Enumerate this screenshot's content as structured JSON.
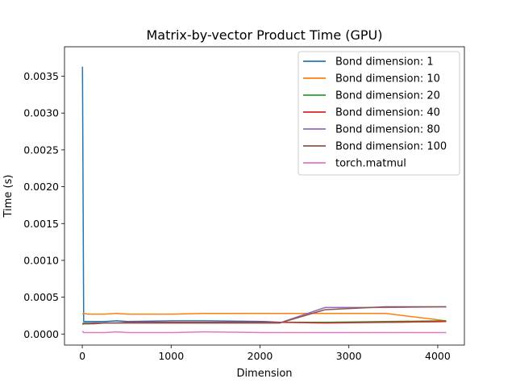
{
  "chart_data": {
    "type": "line",
    "title": "Matrix-by-vector Product Time (GPU)",
    "xlabel": "Dimension",
    "ylabel": "Time (s)",
    "xlim": [
      -200,
      4300
    ],
    "ylim": [
      -0.00015,
      0.0039
    ],
    "xticks": [
      0,
      1000,
      2000,
      3000,
      4000
    ],
    "xtick_labels": [
      "0",
      "1000",
      "2000",
      "3000",
      "4000"
    ],
    "yticks": [
      0.0,
      0.0005,
      0.001,
      0.0015,
      0.002,
      0.0025,
      0.003,
      0.0035
    ],
    "ytick_labels": [
      "0.0000",
      "0.0005",
      "0.0010",
      "0.0015",
      "0.0020",
      "0.0025",
      "0.0030",
      "0.0035"
    ],
    "grid": false,
    "legend_position": "top-right",
    "x": [
      2,
      16,
      64,
      128,
      256,
      384,
      512,
      1024,
      1365,
      2048,
      2221,
      2731,
      3413,
      4096
    ],
    "series": [
      {
        "name": "Bond dimension: 1",
        "color": "#1f77b4",
        "values": [
          0.00363,
          0.00017,
          0.00017,
          0.00017,
          0.00017,
          0.00018,
          0.00017,
          0.00018,
          0.00018,
          0.00017,
          0.00016,
          0.00016,
          0.00016,
          0.00017
        ]
      },
      {
        "name": "Bond dimension: 10",
        "color": "#ff7f0e",
        "values": [
          0.00027,
          0.00028,
          0.00027,
          0.00027,
          0.00027,
          0.00028,
          0.00027,
          0.00027,
          0.00028,
          0.00028,
          0.00028,
          0.00028,
          0.00028,
          0.00018
        ]
      },
      {
        "name": "Bond dimension: 20",
        "color": "#2ca02c",
        "values": [
          0.00014,
          0.00015,
          0.00015,
          0.00015,
          0.00015,
          0.00015,
          0.00016,
          0.00016,
          0.00016,
          0.00016,
          0.00016,
          0.00016,
          0.00017,
          0.00018
        ]
      },
      {
        "name": "Bond dimension: 40",
        "color": "#d62728",
        "values": [
          0.00013,
          0.00014,
          0.00014,
          0.00015,
          0.00015,
          0.00015,
          0.00016,
          0.00016,
          0.00016,
          0.00016,
          0.00016,
          0.00015,
          0.00016,
          0.00017
        ]
      },
      {
        "name": "Bond dimension: 80",
        "color": "#9467bd",
        "values": [
          0.00013,
          0.00014,
          0.00014,
          0.00014,
          0.00015,
          0.00015,
          0.00015,
          0.00015,
          0.00015,
          0.00015,
          0.00015,
          0.00036,
          0.00036,
          0.00037
        ]
      },
      {
        "name": "Bond dimension: 100",
        "color": "#8c564b",
        "values": [
          0.00013,
          0.00014,
          0.00014,
          0.00014,
          0.00015,
          0.00015,
          0.00015,
          0.00015,
          0.00015,
          0.00015,
          0.00015,
          0.00033,
          0.00037,
          0.00037
        ]
      },
      {
        "name": "torch.matmul",
        "color": "#e377c2",
        "values": [
          4e-05,
          2e-05,
          2e-05,
          2e-05,
          2e-05,
          3e-05,
          2e-05,
          2e-05,
          3e-05,
          2e-05,
          2e-05,
          2e-05,
          2e-05,
          2e-05
        ]
      }
    ]
  }
}
